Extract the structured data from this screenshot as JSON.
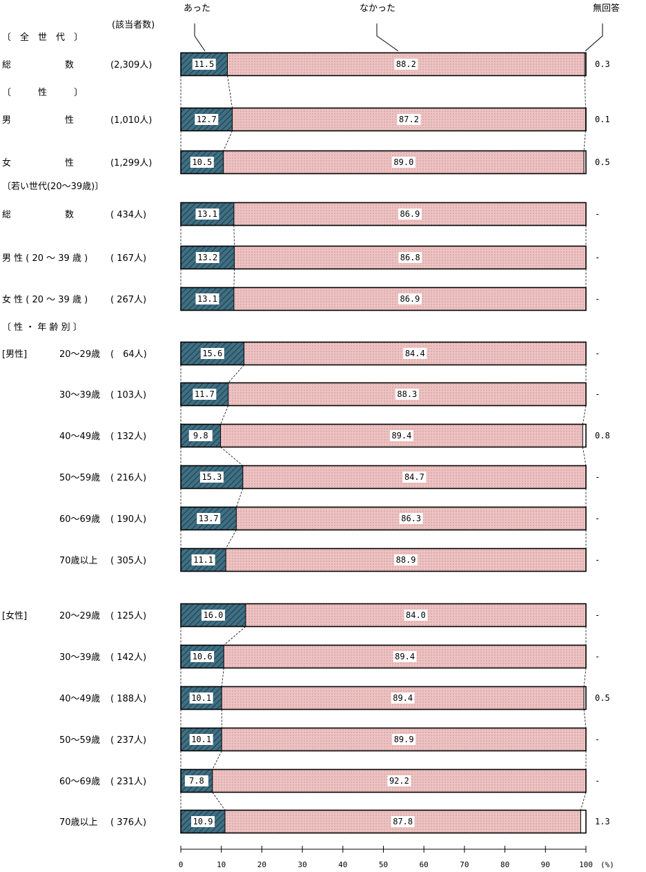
{
  "chart_data": {
    "type": "bar",
    "orientation": "horizontal",
    "stacked": true,
    "legend": [
      "あった",
      "なかった",
      "無回答"
    ],
    "count_header": "(該当者数)",
    "unit": "(%)",
    "xlim": [
      0,
      100
    ],
    "x_ticks": [
      "0",
      "10",
      "20",
      "30",
      "40",
      "50",
      "60",
      "70",
      "80",
      "90",
      "100"
    ],
    "colors": {
      "atta": "#3f6f83",
      "nakatta": "#efc2c2",
      "mukaitou": "#ffffff"
    },
    "section_headers": [
      "〔　全　世　代　〕",
      "〔　　　性　　　〕",
      "〔若い世代(20～39歳)〕",
      "〔 性 ・ 年 齢 別 〕"
    ],
    "rows": [
      {
        "group": "",
        "label": "総　　　　　　数",
        "n": "(2,309人)",
        "atta": 11.5,
        "nakatta": 88.2,
        "mukaitou": 0.3,
        "l1": "11.5",
        "l2": "88.2",
        "l3": "0.3"
      },
      {
        "group": "",
        "label": "男　　　　　　性",
        "n": "(1,010人)",
        "atta": 12.7,
        "nakatta": 87.2,
        "mukaitou": 0.1,
        "l1": "12.7",
        "l2": "87.2",
        "l3": "0.1"
      },
      {
        "group": "",
        "label": "女　　　　　　性",
        "n": "(1,299人)",
        "atta": 10.5,
        "nakatta": 89.0,
        "mukaitou": 0.5,
        "l1": "10.5",
        "l2": "89.0",
        "l3": "0.5"
      },
      {
        "group": "",
        "label": "総　　　　　　数",
        "n": "( 434人)",
        "atta": 13.1,
        "nakatta": 86.9,
        "mukaitou": 0,
        "l1": "13.1",
        "l2": "86.9",
        "l3": "-"
      },
      {
        "group": "",
        "label": "男 性 ( 20 ～ 39 歳 )",
        "n": "( 167人)",
        "atta": 13.2,
        "nakatta": 86.8,
        "mukaitou": 0,
        "l1": "13.2",
        "l2": "86.8",
        "l3": "-"
      },
      {
        "group": "",
        "label": "女 性 ( 20 ～ 39 歳 )",
        "n": "( 267人)",
        "atta": 13.1,
        "nakatta": 86.9,
        "mukaitou": 0,
        "l1": "13.1",
        "l2": "86.9",
        "l3": "-"
      },
      {
        "group": "[男性]",
        "label": "20～29歳",
        "n": "(　64人)",
        "atta": 15.6,
        "nakatta": 84.4,
        "mukaitou": 0,
        "l1": "15.6",
        "l2": "84.4",
        "l3": "-"
      },
      {
        "group": "",
        "label": "30～39歳",
        "n": "( 103人)",
        "atta": 11.7,
        "nakatta": 88.3,
        "mukaitou": 0,
        "l1": "11.7",
        "l2": "88.3",
        "l3": "-"
      },
      {
        "group": "",
        "label": "40～49歳",
        "n": "( 132人)",
        "atta": 9.8,
        "nakatta": 89.4,
        "mukaitou": 0.8,
        "l1": "9.8",
        "l2": "89.4",
        "l3": "0.8"
      },
      {
        "group": "",
        "label": "50～59歳",
        "n": "( 216人)",
        "atta": 15.3,
        "nakatta": 84.7,
        "mukaitou": 0,
        "l1": "15.3",
        "l2": "84.7",
        "l3": "-"
      },
      {
        "group": "",
        "label": "60～69歳",
        "n": "( 190人)",
        "atta": 13.7,
        "nakatta": 86.3,
        "mukaitou": 0,
        "l1": "13.7",
        "l2": "86.3",
        "l3": "-"
      },
      {
        "group": "",
        "label": "70歳以上",
        "n": "( 305人)",
        "atta": 11.1,
        "nakatta": 88.9,
        "mukaitou": 0,
        "l1": "11.1",
        "l2": "88.9",
        "l3": "-"
      },
      {
        "group": "[女性]",
        "label": "20～29歳",
        "n": "( 125人)",
        "atta": 16.0,
        "nakatta": 84.0,
        "mukaitou": 0,
        "l1": "16.0",
        "l2": "84.0",
        "l3": "-"
      },
      {
        "group": "",
        "label": "30～39歳",
        "n": "( 142人)",
        "atta": 10.6,
        "nakatta": 89.4,
        "mukaitou": 0,
        "l1": "10.6",
        "l2": "89.4",
        "l3": "-"
      },
      {
        "group": "",
        "label": "40～49歳",
        "n": "( 188人)",
        "atta": 10.1,
        "nakatta": 89.4,
        "mukaitou": 0.5,
        "l1": "10.1",
        "l2": "89.4",
        "l3": "0.5"
      },
      {
        "group": "",
        "label": "50～59歳",
        "n": "( 237人)",
        "atta": 10.1,
        "nakatta": 89.9,
        "mukaitou": 0,
        "l1": "10.1",
        "l2": "89.9",
        "l3": "-"
      },
      {
        "group": "",
        "label": "60～69歳",
        "n": "( 231人)",
        "atta": 7.8,
        "nakatta": 92.2,
        "mukaitou": 0,
        "l1": "7.8",
        "l2": "92.2",
        "l3": "-"
      },
      {
        "group": "",
        "label": "70歳以上",
        "n": "( 376人)",
        "atta": 10.9,
        "nakatta": 87.8,
        "mukaitou": 1.3,
        "l1": "10.9",
        "l2": "87.8",
        "l3": "1.3"
      }
    ]
  }
}
